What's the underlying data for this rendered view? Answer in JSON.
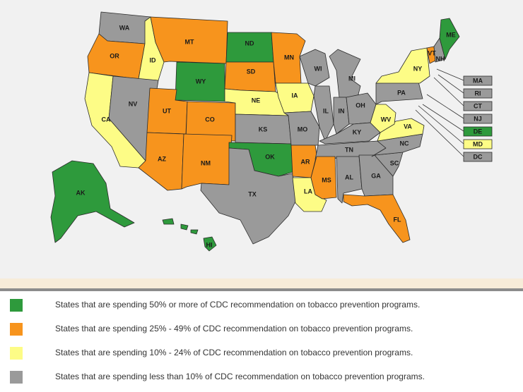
{
  "colors": {
    "green": "#2e9a3c",
    "orange": "#f7941d",
    "yellow": "#fdfc86",
    "gray": "#9a9a9a"
  },
  "states": [
    {
      "abbr": "WA",
      "category": "gray"
    },
    {
      "abbr": "OR",
      "category": "orange"
    },
    {
      "abbr": "CA",
      "category": "yellow"
    },
    {
      "abbr": "ID",
      "category": "yellow"
    },
    {
      "abbr": "NV",
      "category": "gray"
    },
    {
      "abbr": "MT",
      "category": "orange"
    },
    {
      "abbr": "WY",
      "category": "green"
    },
    {
      "abbr": "UT",
      "category": "orange"
    },
    {
      "abbr": "CO",
      "category": "orange"
    },
    {
      "abbr": "AZ",
      "category": "orange"
    },
    {
      "abbr": "NM",
      "category": "orange"
    },
    {
      "abbr": "ND",
      "category": "green"
    },
    {
      "abbr": "SD",
      "category": "orange"
    },
    {
      "abbr": "NE",
      "category": "yellow"
    },
    {
      "abbr": "KS",
      "category": "gray"
    },
    {
      "abbr": "OK",
      "category": "green"
    },
    {
      "abbr": "TX",
      "category": "gray"
    },
    {
      "abbr": "MN",
      "category": "orange"
    },
    {
      "abbr": "IA",
      "category": "yellow"
    },
    {
      "abbr": "MO",
      "category": "gray"
    },
    {
      "abbr": "AR",
      "category": "orange"
    },
    {
      "abbr": "LA",
      "category": "yellow"
    },
    {
      "abbr": "WI",
      "category": "gray"
    },
    {
      "abbr": "IL",
      "category": "gray"
    },
    {
      "abbr": "MI",
      "category": "gray"
    },
    {
      "abbr": "IN",
      "category": "gray"
    },
    {
      "abbr": "OH",
      "category": "gray"
    },
    {
      "abbr": "KY",
      "category": "gray"
    },
    {
      "abbr": "TN",
      "category": "gray"
    },
    {
      "abbr": "MS",
      "category": "orange"
    },
    {
      "abbr": "AL",
      "category": "gray"
    },
    {
      "abbr": "GA",
      "category": "gray"
    },
    {
      "abbr": "FL",
      "category": "orange"
    },
    {
      "abbr": "SC",
      "category": "gray"
    },
    {
      "abbr": "NC",
      "category": "gray"
    },
    {
      "abbr": "VA",
      "category": "yellow"
    },
    {
      "abbr": "WV",
      "category": "yellow"
    },
    {
      "abbr": "PA",
      "category": "gray"
    },
    {
      "abbr": "NY",
      "category": "yellow"
    },
    {
      "abbr": "VT",
      "category": "orange"
    },
    {
      "abbr": "NH",
      "category": "gray"
    },
    {
      "abbr": "ME",
      "category": "green"
    },
    {
      "abbr": "AK",
      "category": "green"
    },
    {
      "abbr": "HI",
      "category": "green"
    }
  ],
  "small_states": [
    {
      "abbr": "MA",
      "category": "gray"
    },
    {
      "abbr": "RI",
      "category": "gray"
    },
    {
      "abbr": "CT",
      "category": "gray"
    },
    {
      "abbr": "NJ",
      "category": "gray"
    },
    {
      "abbr": "DE",
      "category": "green"
    },
    {
      "abbr": "MD",
      "category": "yellow"
    },
    {
      "abbr": "DC",
      "category": "gray"
    }
  ],
  "legend": [
    {
      "category": "green",
      "text": "States that are spending 50% or more of CDC recommendation on tobacco prevention programs."
    },
    {
      "category": "orange",
      "text": "States that are spending 25% - 49% of CDC recommendation on tobacco prevention programs."
    },
    {
      "category": "yellow",
      "text": "States that are spending 10% - 24% of CDC recommendation on tobacco prevention programs."
    },
    {
      "category": "gray",
      "text": "States that are spending less than 10% of CDC recommendation on tobacco prevention programs."
    }
  ]
}
